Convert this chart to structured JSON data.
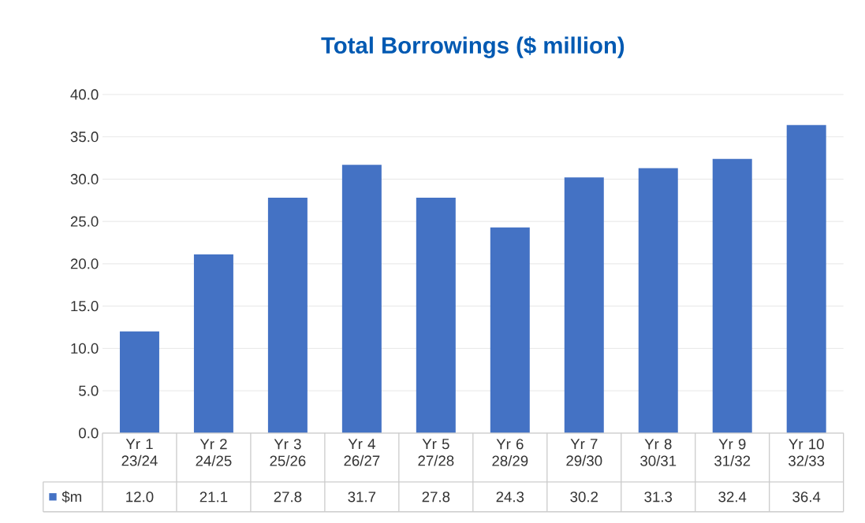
{
  "chart_data": {
    "type": "bar",
    "title": "Total Borrowings ($ million)",
    "categories": [
      "Yr 1 23/24",
      "Yr 2 24/25",
      "Yr 3 25/26",
      "Yr 4 26/27",
      "Yr 5 27/28",
      "Yr 6 28/29",
      "Yr 7 29/30",
      "Yr 8 30/31",
      "Yr 9 31/32",
      "Yr 10 32/33"
    ],
    "series": [
      {
        "name": "$m",
        "color": "#4472c4",
        "values": [
          12.0,
          21.1,
          27.8,
          31.7,
          27.8,
          24.3,
          30.2,
          31.3,
          32.4,
          36.4
        ],
        "value_labels": [
          "12.0",
          "21.1",
          "27.8",
          "31.7",
          "27.8",
          "24.3",
          "30.2",
          "31.3",
          "32.4",
          "36.4"
        ]
      }
    ],
    "ylim": [
      0,
      40
    ],
    "yticks": [
      {
        "value": 0,
        "label": "0.0"
      },
      {
        "value": 5,
        "label": "5.0"
      },
      {
        "value": 10,
        "label": "10.0"
      },
      {
        "value": 15,
        "label": "15.0"
      },
      {
        "value": 20,
        "label": "20.0"
      },
      {
        "value": 25,
        "label": "25.0"
      },
      {
        "value": 30,
        "label": "30.0"
      },
      {
        "value": 35,
        "label": "35.0"
      },
      {
        "value": 40,
        "label": "40.0"
      }
    ],
    "grid": "y"
  }
}
